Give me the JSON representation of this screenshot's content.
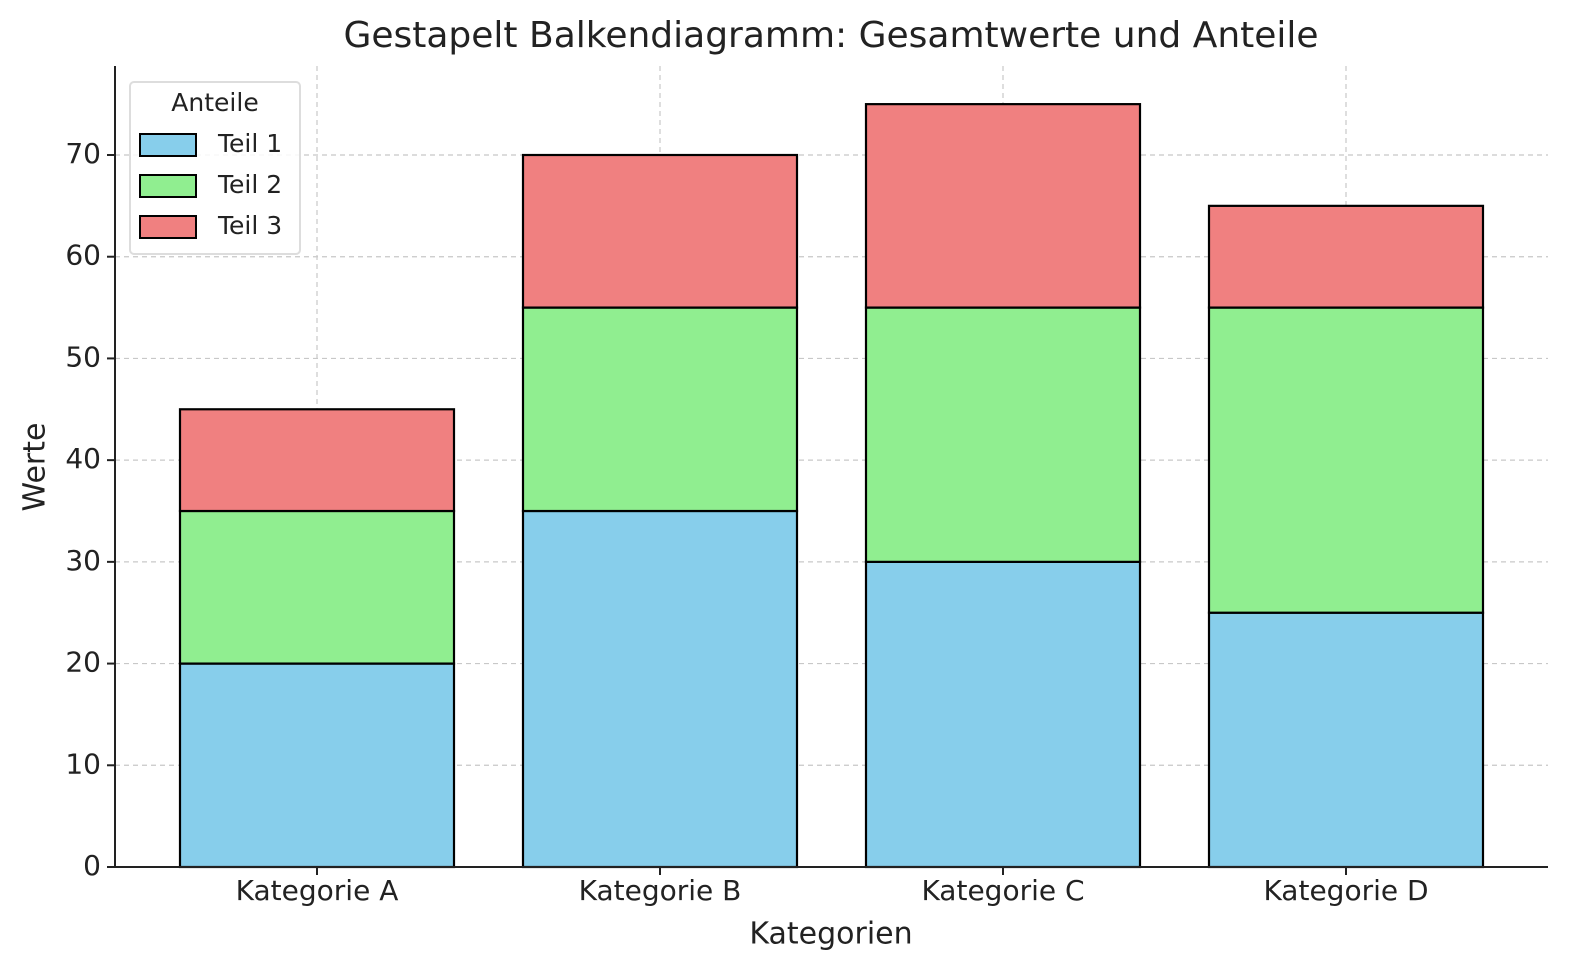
{
  "chart_data": {
    "type": "stacked_bar",
    "title": "Gestapelt Balkendiagramm: Gesamtwerte und Anteile",
    "x_label": "Kategorien",
    "y_label": "Werte",
    "categories": [
      "Kategorie A",
      "Kategorie B",
      "Kategorie C",
      "Kategorie D"
    ],
    "series": [
      {
        "name": "Teil 1",
        "color": "#87ceeb",
        "values": [
          20,
          35,
          30,
          25
        ]
      },
      {
        "name": "Teil 2",
        "color": "#90ee90",
        "values": [
          15,
          20,
          25,
          30
        ]
      },
      {
        "name": "Teil 3",
        "color": "#f08080",
        "values": [
          10,
          15,
          20,
          10
        ]
      }
    ],
    "legend_title": "Anteile",
    "legend": "upper left",
    "ylim": [
      0,
      78.75
    ],
    "yticks": [
      0,
      10,
      20,
      30,
      40,
      50,
      60,
      70
    ],
    "grid": true
  }
}
